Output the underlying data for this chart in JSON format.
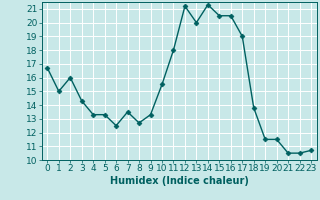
{
  "x": [
    0,
    1,
    2,
    3,
    4,
    5,
    6,
    7,
    8,
    9,
    10,
    11,
    12,
    13,
    14,
    15,
    16,
    17,
    18,
    19,
    20,
    21,
    22,
    23
  ],
  "y": [
    16.7,
    15.0,
    16.0,
    14.3,
    13.3,
    13.3,
    12.5,
    13.5,
    12.7,
    13.3,
    15.5,
    18.0,
    21.2,
    20.0,
    21.3,
    20.5,
    20.5,
    19.0,
    13.8,
    11.5,
    11.5,
    10.5,
    10.5,
    10.7
  ],
  "line_color": "#006060",
  "marker": "D",
  "marker_size": 2.5,
  "bg_color": "#c8e8e8",
  "grid_color": "#ffffff",
  "xlabel": "Humidex (Indice chaleur)",
  "ylim": [
    10,
    21.5
  ],
  "xlim": [
    -0.5,
    23.5
  ],
  "yticks": [
    10,
    11,
    12,
    13,
    14,
    15,
    16,
    17,
    18,
    19,
    20,
    21
  ],
  "xticks": [
    0,
    1,
    2,
    3,
    4,
    5,
    6,
    7,
    8,
    9,
    10,
    11,
    12,
    13,
    14,
    15,
    16,
    17,
    18,
    19,
    20,
    21,
    22,
    23
  ],
  "xlabel_fontsize": 7,
  "tick_fontsize": 6.5,
  "linewidth": 1.0
}
